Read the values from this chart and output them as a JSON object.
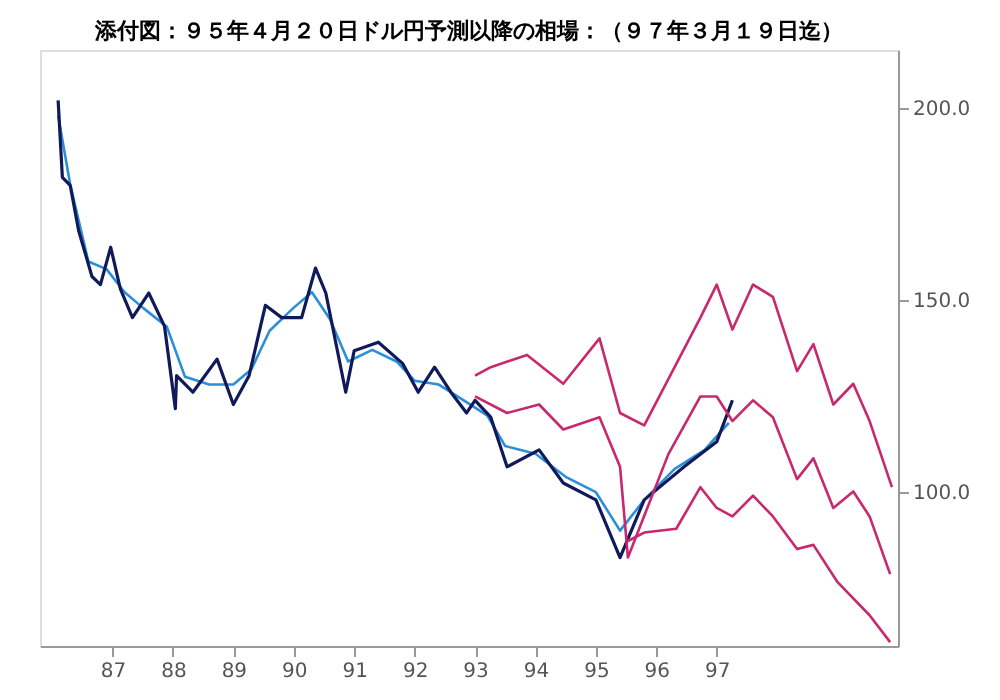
{
  "chart_data": {
    "type": "line",
    "title": "添付図：９５年４月２０日ドル円予測以降の相場：（９７年３月１９日迄）",
    "xlim": [
      1985.8,
      2000.0
    ],
    "ylim": [
      60,
      215
    ],
    "xticks": [
      {
        "value": 1987,
        "label": "87"
      },
      {
        "value": 1988,
        "label": "88"
      },
      {
        "value": 1989,
        "label": "89"
      },
      {
        "value": 1990,
        "label": "90"
      },
      {
        "value": 1991,
        "label": "91"
      },
      {
        "value": 1992,
        "label": "92"
      },
      {
        "value": 1993,
        "label": "93"
      },
      {
        "value": 1994,
        "label": "94"
      },
      {
        "value": 1995,
        "label": "95"
      },
      {
        "value": 1996,
        "label": "96"
      },
      {
        "value": 1997,
        "label": "97"
      }
    ],
    "yticks": [
      {
        "value": 100,
        "label": "100.0"
      },
      {
        "value": 150,
        "label": "150.0"
      },
      {
        "value": 200,
        "label": "200.0"
      }
    ],
    "grid": false,
    "line_style": "solid",
    "marker": "none",
    "series": [
      {
        "color": "#2a8fd8",
        "x": [
          1986.1,
          1986.3,
          1986.6,
          1986.9,
          1987.2,
          1987.5,
          1987.9,
          1988.2,
          1988.6,
          1989.0,
          1989.3,
          1989.6,
          1990.0,
          1990.3,
          1990.6,
          1990.9,
          1991.3,
          1991.7,
          1992.0,
          1992.4,
          1992.8,
          1993.2,
          1993.5,
          1994.0,
          1994.5,
          1995.0,
          1995.4,
          1995.8,
          1996.3,
          1996.8,
          1997.2
        ],
        "values": [
          198,
          180,
          160,
          158,
          152,
          148,
          143,
          130,
          128,
          128,
          132,
          142,
          148,
          152,
          145,
          134,
          137,
          134,
          129,
          128,
          124,
          120,
          112,
          110,
          104,
          100,
          90,
          98,
          106,
          111,
          118
        ]
      },
      {
        "color": "#101a5a",
        "x": [
          1986.1,
          1986.17,
          1986.3,
          1986.44,
          1986.66,
          1986.8,
          1986.97,
          1987.13,
          1987.33,
          1987.6,
          1987.86,
          1988.04,
          1988.06,
          1988.33,
          1988.73,
          1989.0,
          1989.26,
          1989.53,
          1989.8,
          1990.13,
          1990.36,
          1990.53,
          1990.86,
          1991.0,
          1991.4,
          1991.8,
          1992.06,
          1992.33,
          1992.6,
          1992.86,
          1993.0,
          1993.26,
          1993.53,
          1994.06,
          1994.46,
          1995.0,
          1995.4,
          1995.8,
          1996.46,
          1997.0,
          1997.26
        ],
        "values": [
          201.9,
          181.9,
          179.8,
          168,
          156.1,
          154,
          163.7,
          152.9,
          145.4,
          151.8,
          143.2,
          121.7,
          130.3,
          126,
          134.6,
          122.8,
          130.3,
          148.6,
          145.4,
          145.4,
          158.3,
          151.8,
          126,
          136.8,
          139,
          133.5,
          126,
          132.5,
          126,
          120.6,
          123.9,
          119.5,
          106.6,
          111,
          102.4,
          98,
          83,
          98,
          106.6,
          113.1,
          123.9
        ]
      },
      {
        "color": "#c8286e",
        "x": [
          1993.0,
          1993.26,
          1993.86,
          1994.46,
          1995.06,
          1995.4,
          1995.8,
          1996.73,
          1997.0,
          1997.26,
          1997.6,
          1997.93,
          1998.33,
          1998.6,
          1998.93,
          1999.26,
          1999.53,
          1999.9
        ],
        "values": [
          130.3,
          132.5,
          135.7,
          128.2,
          140,
          120.6,
          117.4,
          145.4,
          154,
          142.3,
          154,
          150.8,
          131.5,
          138.5,
          122.8,
          128.2,
          118.5,
          101.3
        ]
      },
      {
        "color": "#c8286e",
        "x": [
          1993.0,
          1993.53,
          1994.06,
          1994.46,
          1995.06,
          1995.4,
          1995.53,
          1996.2,
          1996.73,
          1997.0,
          1997.26,
          1997.6,
          1997.93,
          1998.33,
          1998.6,
          1998.93,
          1999.26,
          1999.53,
          1999.87
        ],
        "values": [
          124.9,
          120.6,
          122.8,
          116.3,
          119.5,
          106.6,
          83,
          109.9,
          124.9,
          124.9,
          118.5,
          123.9,
          119.5,
          103.4,
          108.8,
          95.9,
          100.2,
          93.7,
          78.7
        ]
      },
      {
        "color": "#c8286e",
        "x": [
          1995.53,
          1995.8,
          1996.33,
          1996.73,
          1997.0,
          1997.26,
          1997.6,
          1997.93,
          1998.33,
          1998.6,
          1999.0,
          1999.53,
          1999.87
        ],
        "values": [
          87.3,
          89.5,
          90.5,
          101.3,
          95.9,
          93.7,
          99.1,
          93.7,
          85.2,
          86.3,
          76.6,
          68,
          61
        ]
      }
    ]
  }
}
